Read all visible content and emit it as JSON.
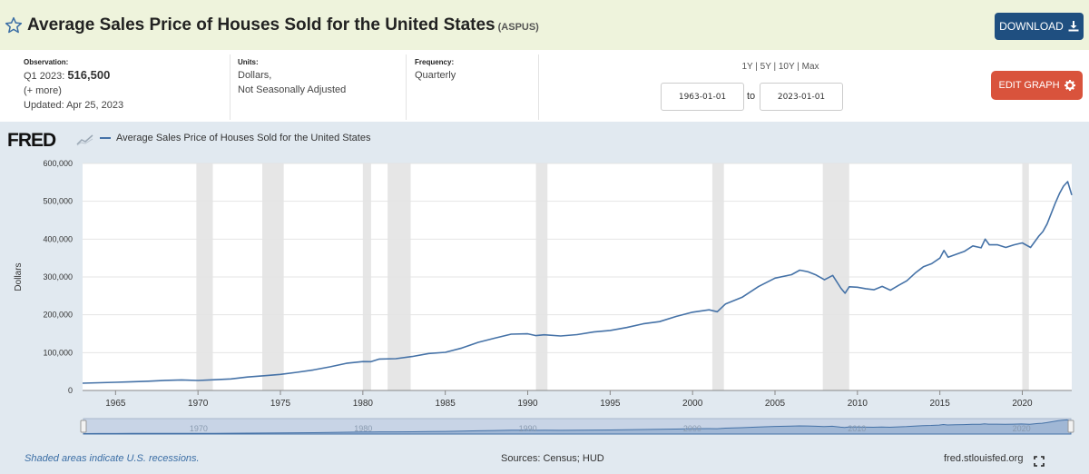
{
  "header": {
    "title": "Average Sales Price of Houses Sold for the United States",
    "series_id": "(ASPUS)",
    "download_label": "DOWNLOAD"
  },
  "info": {
    "observation_label": "Observation:",
    "observation_period": "Q1 2023:",
    "observation_value": "516,500",
    "more_label": "(+ more)",
    "updated": "Updated: Apr 25, 2023",
    "units_label": "Units:",
    "units_line1": "Dollars,",
    "units_line2": "Not Seasonally Adjusted",
    "frequency_label": "Frequency:",
    "frequency_value": "Quarterly",
    "range_buttons": [
      "1Y",
      "5Y",
      "10Y",
      "Max"
    ],
    "start_date": "1963-01-01",
    "to_label": "to",
    "end_date": "2023-01-01",
    "edit_graph_label": "EDIT GRAPH"
  },
  "chart": {
    "logo_text": "FRED",
    "legend_label": "Average Sales Price of Houses Sold for the United States",
    "footer_note": "Shaded areas indicate U.S. recessions.",
    "sources": "Sources: Census; HUD",
    "site": "fred.stlouisfed.org"
  },
  "colors": {
    "header_bg": "#eef3dc",
    "chart_bg": "#e1e9f0",
    "line": "#4572a7",
    "download_btn": "#1f4f80",
    "edit_btn": "#d9533c",
    "recession_shade": "#e6e6e6"
  },
  "chart_data": {
    "type": "line",
    "ylabel": "Dollars",
    "ylim": [
      0,
      600000
    ],
    "xlim": [
      1963.0,
      2023.0
    ],
    "y_ticks": [
      0,
      100000,
      200000,
      300000,
      400000,
      500000,
      600000
    ],
    "y_tick_labels": [
      "0",
      "100,000",
      "200,000",
      "300,000",
      "400,000",
      "500,000",
      "600,000"
    ],
    "x_ticks": [
      1965,
      1970,
      1975,
      1980,
      1985,
      1990,
      1995,
      2000,
      2005,
      2010,
      2015,
      2020
    ],
    "x_tick_labels": [
      "1965",
      "1970",
      "1975",
      "1980",
      "1985",
      "1990",
      "1995",
      "2000",
      "2005",
      "2010",
      "2015",
      "2020"
    ],
    "navigator_labels": [
      {
        "x": 1970,
        "label": "1970"
      },
      {
        "x": 1980,
        "label": "1980"
      },
      {
        "x": 1990,
        "label": "1990"
      },
      {
        "x": 2000,
        "label": "2000"
      },
      {
        "x": 2010,
        "label": "2010"
      },
      {
        "x": 2020,
        "label": "2020"
      }
    ],
    "recessions": [
      [
        1969.9,
        1970.9
      ],
      [
        1973.9,
        1975.2
      ],
      [
        1980.0,
        1980.5
      ],
      [
        1981.5,
        1982.9
      ],
      [
        1990.5,
        1991.2
      ],
      [
        2001.2,
        2001.9
      ],
      [
        2007.9,
        2009.5
      ],
      [
        2020.0,
        2020.4
      ]
    ],
    "series": [
      {
        "name": "Average Sales Price of Houses Sold for the United States",
        "x": [
          1963.0,
          1964.0,
          1965.0,
          1966.0,
          1967.0,
          1968.0,
          1969.0,
          1970.0,
          1971.0,
          1972.0,
          1973.0,
          1974.0,
          1975.0,
          1976.0,
          1977.0,
          1978.0,
          1979.0,
          1980.0,
          1980.5,
          1981.0,
          1982.0,
          1983.0,
          1984.0,
          1985.0,
          1986.0,
          1987.0,
          1988.0,
          1989.0,
          1990.0,
          1990.5,
          1991.0,
          1992.0,
          1993.0,
          1994.0,
          1995.0,
          1996.0,
          1997.0,
          1998.0,
          1999.0,
          2000.0,
          2001.0,
          2001.5,
          2002.0,
          2003.0,
          2004.0,
          2005.0,
          2006.0,
          2006.5,
          2007.0,
          2007.5,
          2008.0,
          2008.5,
          2009.0,
          2009.25,
          2009.5,
          2010.0,
          2010.5,
          2011.0,
          2011.5,
          2012.0,
          2012.5,
          2013.0,
          2013.5,
          2014.0,
          2014.5,
          2015.0,
          2015.25,
          2015.5,
          2016.0,
          2016.5,
          2017.0,
          2017.5,
          2017.75,
          2018.0,
          2018.5,
          2019.0,
          2019.5,
          2020.0,
          2020.5,
          2021.0,
          2021.25,
          2021.5,
          2022.0,
          2022.25,
          2022.5,
          2022.75,
          2023.0
        ],
        "values": [
          19300,
          20500,
          21500,
          23000,
          24500,
          26600,
          27900,
          26500,
          28300,
          30500,
          35500,
          38900,
          42600,
          48000,
          54200,
          62500,
          71800,
          76400,
          76000,
          83000,
          83900,
          89800,
          97600,
          100800,
          112000,
          127200,
          138300,
          148800,
          149800,
          145000,
          147200,
          144100,
          147700,
          154500,
          158700,
          166400,
          176200,
          181900,
          195600,
          207000,
          213200,
          208000,
          228700,
          246300,
          274500,
          297000,
          305900,
          318000,
          313600,
          305000,
          292600,
          304000,
          270000,
          257000,
          274000,
          272900,
          269000,
          266200,
          275000,
          265000,
          278000,
          290000,
          310000,
          327000,
          335000,
          350000,
          370000,
          352000,
          360000,
          368000,
          382000,
          377000,
          400000,
          385000,
          385000,
          378000,
          385000,
          390000,
          378000,
          408000,
          420000,
          440000,
          495000,
          520000,
          540000,
          552000,
          516500
        ]
      }
    ]
  }
}
